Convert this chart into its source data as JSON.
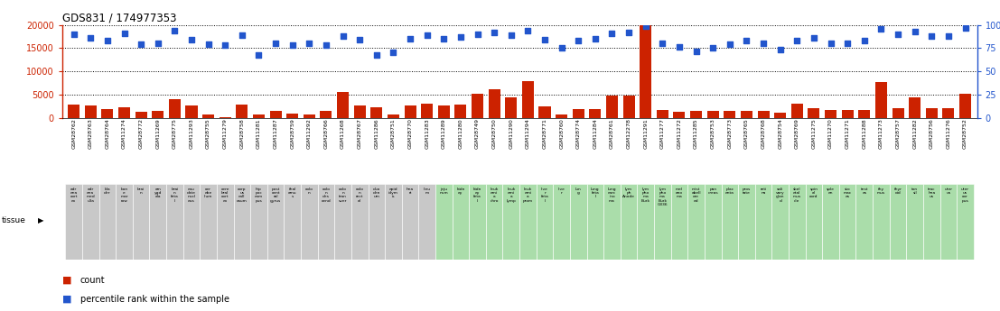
{
  "title": "GDS831 / 174977353",
  "samples": [
    "GSM28762",
    "GSM28763",
    "GSM28764",
    "GSM11274",
    "GSM28772",
    "GSM11269",
    "GSM28775",
    "GSM11293",
    "GSM28755",
    "GSM11279",
    "GSM28758",
    "GSM11281",
    "GSM11287",
    "GSM28759",
    "GSM11292",
    "GSM28766",
    "GSM11268",
    "GSM28767",
    "GSM11286",
    "GSM28751",
    "GSM28770",
    "GSM11283",
    "GSM11289",
    "GSM11280",
    "GSM28749",
    "GSM28750",
    "GSM11290",
    "GSM11294",
    "GSM28771",
    "GSM28760",
    "GSM28774",
    "GSM11284",
    "GSM28761",
    "GSM12278",
    "GSM11291",
    "GSM11277",
    "GSM11272",
    "GSM11285",
    "GSM28753",
    "GSM28773",
    "GSM28765",
    "GSM28768",
    "GSM28754",
    "GSM28769",
    "GSM11275",
    "GSM11270",
    "GSM11271",
    "GSM11288",
    "GSM11273",
    "GSM28757",
    "GSM11282",
    "GSM28756",
    "GSM11276",
    "GSM28752"
  ],
  "counts": [
    3000,
    2700,
    2000,
    2300,
    1300,
    1600,
    4100,
    2700,
    800,
    300,
    3000,
    800,
    1500,
    1000,
    800,
    1500,
    5600,
    2800,
    2400,
    700,
    2700,
    3200,
    2700,
    3000,
    5200,
    6200,
    4500,
    7900,
    2500,
    700,
    1900,
    1900,
    4800,
    4800,
    20000,
    1700,
    1400,
    1600,
    1500,
    1600,
    1600,
    1500,
    1200,
    3100,
    2200,
    1700,
    1700,
    1800,
    7800,
    2200,
    4400,
    2100,
    2100,
    5200
  ],
  "percentiles": [
    90,
    86,
    83,
    91,
    79,
    80,
    94,
    84,
    79,
    78,
    89,
    68,
    80,
    78,
    80,
    78,
    88,
    84,
    68,
    71,
    85,
    89,
    85,
    87,
    90,
    92,
    89,
    94,
    84,
    75,
    83,
    85,
    91,
    92,
    99,
    80,
    76,
    72,
    75,
    79,
    83,
    80,
    74,
    83,
    86,
    80,
    80,
    83,
    96,
    90,
    93,
    88,
    88,
    97
  ],
  "tissue_texts": [
    "adr\nena\ncort\nex",
    "adr\nena\nmed\nulla",
    "bla\nder",
    "bon\ne\nmar\nrow",
    "brai\nn",
    "am\nygd\nala",
    "brai\nn\nfeta\nl",
    "cau\ndate\nnucl\neus",
    "cer\nebe\nllum",
    "cere\nbral\ncort\nex",
    "corp\nus\ncall\nosum",
    "hip\npoc\ncam\npus",
    "post\ncent\nral\ngyrus",
    "thal\namu\ns",
    "colo\nn",
    "colo\nn\ndes\ncend",
    "colo\nn\ntran\nsver",
    "colo\nn\nrect\nal",
    "duo\nden\num",
    "epid\nidym\nis",
    "hea\nrt",
    "ileu\nm",
    "jeju\nnum",
    "kidn\ney",
    "kidn\ney\nfeta\nl",
    "leuk\nemi\na\nchro",
    "leuk\nemi\na\nlymp",
    "leuk\nemi\na\nprom",
    "live\nr\nfeta\nl",
    "live\nr",
    "lun\ng",
    "lung\nfeta\nl",
    "lung\ncarc\nino\nma",
    "lym\nph\nAnode",
    "lym\npho\nma\nBurk",
    "lym\npho\nma\nBurk\nG336",
    "mel\nano\nma",
    "mist\nabell\nore\ned",
    "pan\ncreas",
    "plac\nenta",
    "pros\ntate",
    "reti\nna",
    "sali\nvary\nglan\nd",
    "skel\netal\nmus\ncle",
    "spin\nal\ncord",
    "sple\nen",
    "sto\nmac\nes",
    "test\nes",
    "thy\nmus",
    "thyr\noid",
    "ton\nsil",
    "trac\nhea\nus",
    "uter\nus",
    "uter\nus\ncor\npus"
  ],
  "tissue_colors": [
    "#c8c8c8",
    "#c8c8c8",
    "#c8c8c8",
    "#c8c8c8",
    "#c8c8c8",
    "#c8c8c8",
    "#c8c8c8",
    "#c8c8c8",
    "#c8c8c8",
    "#c8c8c8",
    "#c8c8c8",
    "#c8c8c8",
    "#c8c8c8",
    "#c8c8c8",
    "#c8c8c8",
    "#c8c8c8",
    "#c8c8c8",
    "#c8c8c8",
    "#c8c8c8",
    "#c8c8c8",
    "#c8c8c8",
    "#c8c8c8",
    "#aaddaa",
    "#aaddaa",
    "#aaddaa",
    "#aaddaa",
    "#aaddaa",
    "#aaddaa",
    "#aaddaa",
    "#aaddaa",
    "#aaddaa",
    "#aaddaa",
    "#aaddaa",
    "#aaddaa",
    "#aaddaa",
    "#aaddaa",
    "#aaddaa",
    "#aaddaa",
    "#aaddaa",
    "#aaddaa",
    "#aaddaa",
    "#aaddaa",
    "#aaddaa",
    "#aaddaa",
    "#aaddaa",
    "#aaddaa",
    "#aaddaa",
    "#aaddaa",
    "#aaddaa",
    "#aaddaa",
    "#aaddaa",
    "#aaddaa",
    "#aaddaa",
    "#aaddaa"
  ],
  "ylim_left": [
    0,
    20000
  ],
  "ylim_right": [
    0,
    100
  ],
  "yticks_left": [
    0,
    5000,
    10000,
    15000,
    20000
  ],
  "yticks_right": [
    0,
    25,
    50,
    75,
    100
  ],
  "bar_color": "#cc2200",
  "dot_color": "#2255cc",
  "bg_color": "#ffffff"
}
